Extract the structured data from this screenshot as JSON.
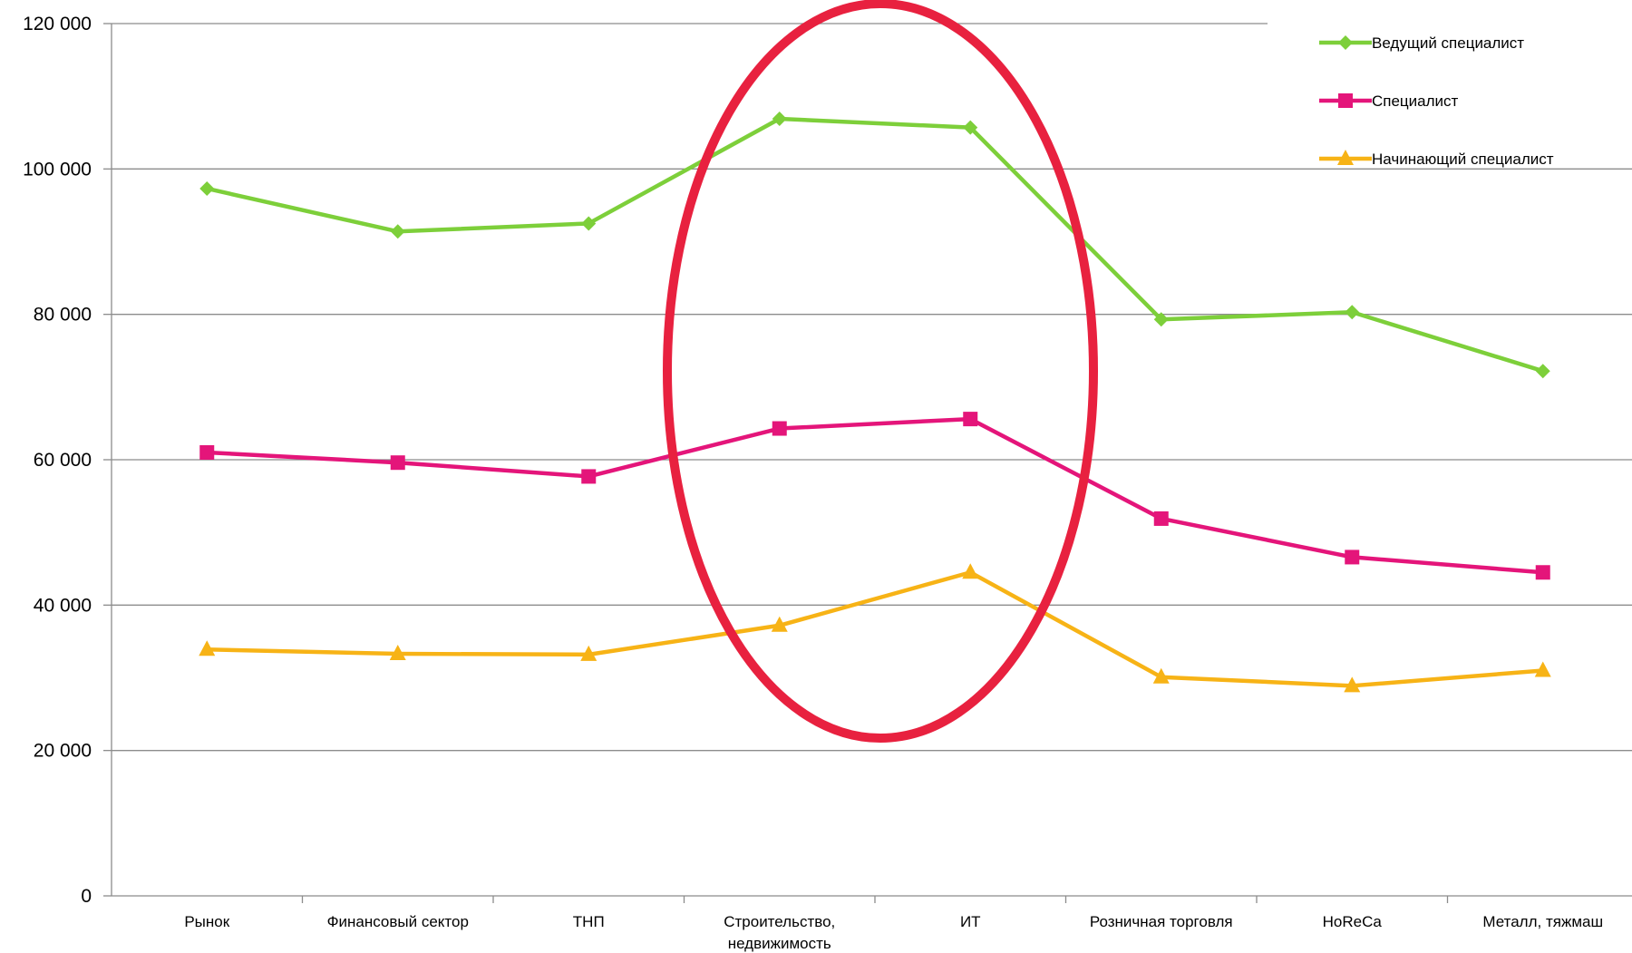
{
  "chart_data": {
    "type": "line",
    "title": "",
    "xlabel": "",
    "ylabel": "",
    "ylim": [
      0,
      120000
    ],
    "yticks": [
      0,
      20000,
      40000,
      60000,
      80000,
      100000,
      120000
    ],
    "ytick_labels": [
      "0",
      "20 000",
      "40 000",
      "60 000",
      "80 000",
      "100 000",
      "120 000"
    ],
    "grid": "horizontal",
    "legend_position": "top-right",
    "categories": [
      "Рынок",
      "Финансовый сектор",
      "ТНП",
      "Строительство, недвижимость",
      "ИТ",
      "Розничная торговля",
      "HoReCa",
      "Металл, тяжмаш"
    ],
    "series": [
      {
        "name": "Ведущий специалист",
        "color": "#7dcf3a",
        "marker": "diamond",
        "values": [
          97300,
          91400,
          92500,
          106900,
          105700,
          79300,
          80300,
          72200
        ]
      },
      {
        "name": "Специалист",
        "color": "#e4157a",
        "marker": "square",
        "values": [
          61000,
          59600,
          57700,
          64300,
          65600,
          51900,
          46600,
          44500
        ]
      },
      {
        "name": "Начинающий специалист",
        "color": "#f7b316",
        "marker": "triangle",
        "values": [
          33900,
          33300,
          33200,
          37200,
          44500,
          30100,
          28900,
          31000
        ]
      }
    ],
    "annotation": {
      "shape": "ellipse",
      "color": "#e8213f",
      "highlights": [
        "Строительство, недвижимость",
        "ИТ"
      ]
    }
  }
}
